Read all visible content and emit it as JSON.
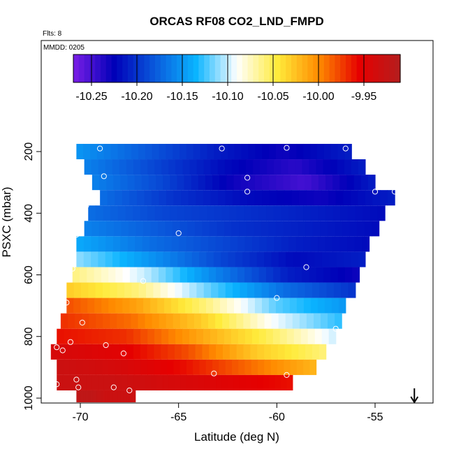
{
  "chart_data": {
    "type": "heatmap",
    "title": "ORCAS RF08 CO2_LND_FMPD",
    "subtitle_flights": "Flts: 8",
    "subtitle_date": "MMDD: 0205",
    "xlabel": "Latitude (deg N)",
    "ylabel": "PSXC (mbar)",
    "xlim": [
      -71.5,
      -52.0
    ],
    "ylim": [
      1010,
      100
    ],
    "x_ticks": [
      -70,
      -65,
      -60,
      -55
    ],
    "x_tick_labels": [
      "-70",
      "-65",
      "-60",
      "-55"
    ],
    "y_ticks": [
      200,
      400,
      600,
      800,
      1000
    ],
    "y_tick_labels": [
      "200",
      "400",
      "600",
      "800",
      "1000"
    ],
    "colorbar": {
      "range": [
        -10.27,
        -9.91
      ],
      "ticks": [
        -10.25,
        -10.2,
        -10.15,
        -10.1,
        -10.05,
        -10.0,
        -9.95
      ],
      "tick_labels": [
        "-10.25",
        "-10.20",
        "-10.15",
        "-10.10",
        "-10.05",
        "-10.00",
        "-9.95"
      ],
      "colors": [
        "#7a1ee6",
        "#0000b8",
        "#0a5adc",
        "#0ab4ff",
        "#ffffff",
        "#ffeb3b",
        "#ff8c00",
        "#e60000",
        "#b41e1e"
      ]
    },
    "rows": [
      {
        "p": 200,
        "x0": -70.2,
        "x1": -56.2,
        "v": [
          -10.15,
          -10.18,
          -10.21,
          -10.23,
          -10.21
        ]
      },
      {
        "p": 250,
        "x0": -69.8,
        "x1": -55.5,
        "v": [
          -10.16,
          -10.19,
          -10.22,
          -10.24,
          -10.21
        ]
      },
      {
        "p": 300,
        "x0": -69.4,
        "x1": -55.0,
        "v": [
          -10.16,
          -10.19,
          -10.23,
          -10.25,
          -10.21
        ]
      },
      {
        "p": 350,
        "x0": -69.0,
        "x1": -54.0,
        "v": [
          -10.17,
          -10.2,
          -10.22,
          -10.23,
          -10.21
        ]
      },
      {
        "p": 400,
        "x0": -69.6,
        "x1": -54.5,
        "v": [
          -10.17,
          -10.19,
          -10.2,
          -10.21,
          -10.22
        ]
      },
      {
        "p": 450,
        "x0": -69.8,
        "x1": -54.8,
        "v": [
          -10.16,
          -10.18,
          -10.2,
          -10.21,
          -10.22
        ]
      },
      {
        "p": 500,
        "x0": -70.2,
        "x1": -55.3,
        "v": [
          -10.14,
          -10.17,
          -10.19,
          -10.21,
          -10.22
        ]
      },
      {
        "p": 550,
        "x0": -70.2,
        "x1": -55.5,
        "v": [
          -10.11,
          -10.15,
          -10.19,
          -10.22,
          -10.21
        ]
      },
      {
        "p": 600,
        "x0": -70.4,
        "x1": -55.8,
        "v": [
          -10.06,
          -10.1,
          -10.16,
          -10.21,
          -10.23
        ]
      },
      {
        "p": 650,
        "x0": -70.7,
        "x1": -56.0,
        "v": [
          -10.03,
          -10.06,
          -10.12,
          -10.17,
          -10.2
        ]
      },
      {
        "p": 700,
        "x0": -70.7,
        "x1": -56.5,
        "v": [
          -9.98,
          -10.01,
          -10.06,
          -10.12,
          -10.15
        ]
      },
      {
        "p": 750,
        "x0": -71.0,
        "x1": -56.7,
        "v": [
          -9.97,
          -9.99,
          -10.03,
          -10.09,
          -10.13
        ]
      },
      {
        "p": 800,
        "x0": -71.2,
        "x1": -57.0,
        "v": [
          -9.96,
          -9.97,
          -10.01,
          -10.05,
          -10.1
        ]
      },
      {
        "p": 850,
        "x0": -71.5,
        "x1": -57.5,
        "v": [
          -9.94,
          -9.95,
          -9.98,
          -10.03,
          -10.06
        ]
      },
      {
        "p": 900,
        "x0": -71.2,
        "x1": -58.0,
        "v": [
          -9.93,
          -9.94,
          -9.96,
          -9.99,
          -10.02
        ]
      },
      {
        "p": 950,
        "x0": -71.2,
        "x1": -59.2,
        "v": [
          -9.93,
          -9.93,
          -9.94,
          -9.95,
          -9.96
        ]
      },
      {
        "p": 1000,
        "x0": -70.2,
        "x1": -67.2,
        "v": [
          -9.92,
          -9.92,
          -9.93,
          -9.93,
          -9.93
        ]
      }
    ],
    "markers": [
      {
        "x": -69.0,
        "y": 190
      },
      {
        "x": -62.8,
        "y": 190
      },
      {
        "x": -59.5,
        "y": 188
      },
      {
        "x": -56.5,
        "y": 190
      },
      {
        "x": -68.8,
        "y": 280
      },
      {
        "x": -61.5,
        "y": 285
      },
      {
        "x": -61.5,
        "y": 330
      },
      {
        "x": -55.0,
        "y": 330
      },
      {
        "x": -54.0,
        "y": 330
      },
      {
        "x": -69.7,
        "y": 375
      },
      {
        "x": -65.0,
        "y": 465
      },
      {
        "x": -70.2,
        "y": 470
      },
      {
        "x": -58.5,
        "y": 575
      },
      {
        "x": -70.4,
        "y": 580
      },
      {
        "x": -66.8,
        "y": 620
      },
      {
        "x": -60.0,
        "y": 675
      },
      {
        "x": -70.7,
        "y": 690
      },
      {
        "x": -69.9,
        "y": 755
      },
      {
        "x": -57.0,
        "y": 775
      },
      {
        "x": -70.5,
        "y": 818
      },
      {
        "x": -71.2,
        "y": 835
      },
      {
        "x": -70.9,
        "y": 845
      },
      {
        "x": -68.7,
        "y": 828
      },
      {
        "x": -67.8,
        "y": 855
      },
      {
        "x": -70.2,
        "y": 940
      },
      {
        "x": -63.2,
        "y": 920
      },
      {
        "x": -59.5,
        "y": 925
      },
      {
        "x": -71.2,
        "y": 955
      },
      {
        "x": -70.1,
        "y": 965
      },
      {
        "x": -68.3,
        "y": 965
      },
      {
        "x": -67.5,
        "y": 975
      }
    ],
    "arrow": {
      "x": -53.0,
      "direction": "down"
    }
  }
}
